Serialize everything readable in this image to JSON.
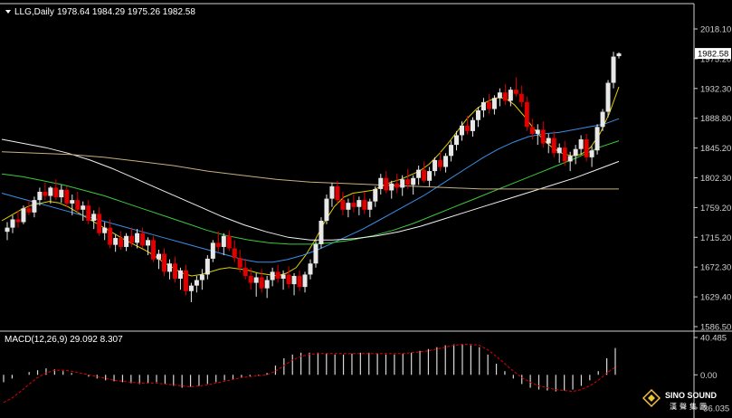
{
  "header": {
    "symbol_label": "LLG,Daily",
    "ohlc": "1978.64 1984.29 1975.26 1982.58"
  },
  "price_axis": {
    "ticks": [
      "2018.10",
      "1975.20",
      "1932.30",
      "1888.80",
      "1845.20",
      "1802.30",
      "1759.20",
      "1715.20",
      "1672.30",
      "1629.40",
      "1586.50"
    ],
    "current_price": "1982.58"
  },
  "macd_panel": {
    "label": "MACD(12,26,9) 29.092 8.307",
    "ticks": [
      "40.485",
      "0.00",
      "-36.035"
    ]
  },
  "watermark": {
    "brand": "SINO SOUND",
    "chinese": "漢聲集團"
  },
  "colors": {
    "background": "#000000",
    "up_candle": "#e8e8e8",
    "down_candle": "#e00000",
    "axis": "#d0d0d0",
    "ma_yellow": "#e0d000",
    "ma_blue": "#3a8fe8",
    "ma_green": "#3cc83c",
    "ma_white": "#f0f0f0",
    "ma_tan": "#c8b080",
    "macd_signal": "#e00000",
    "macd_hist": "#d8d8d8"
  },
  "chart_data": {
    "type": "candlestick",
    "ylim": [
      1586.5,
      2018.1
    ],
    "grid": false,
    "candles_ohlc": [
      [
        1724,
        1738,
        1712,
        1730
      ],
      [
        1730,
        1748,
        1722,
        1742
      ],
      [
        1742,
        1755,
        1730,
        1738
      ],
      [
        1738,
        1762,
        1735,
        1758
      ],
      [
        1758,
        1770,
        1748,
        1752
      ],
      [
        1752,
        1775,
        1745,
        1770
      ],
      [
        1770,
        1788,
        1762,
        1782
      ],
      [
        1782,
        1795,
        1770,
        1776
      ],
      [
        1776,
        1790,
        1765,
        1788
      ],
      [
        1788,
        1800,
        1770,
        1774
      ],
      [
        1774,
        1792,
        1766,
        1785
      ],
      [
        1785,
        1790,
        1760,
        1765
      ],
      [
        1765,
        1778,
        1748,
        1770
      ],
      [
        1770,
        1782,
        1752,
        1756
      ],
      [
        1756,
        1768,
        1740,
        1762
      ],
      [
        1762,
        1770,
        1735,
        1740
      ],
      [
        1740,
        1755,
        1728,
        1750
      ],
      [
        1750,
        1760,
        1718,
        1722
      ],
      [
        1722,
        1738,
        1712,
        1730
      ],
      [
        1730,
        1742,
        1700,
        1705
      ],
      [
        1705,
        1720,
        1695,
        1715
      ],
      [
        1715,
        1725,
        1698,
        1702
      ],
      [
        1702,
        1722,
        1696,
        1718
      ],
      [
        1718,
        1730,
        1702,
        1708
      ],
      [
        1708,
        1728,
        1700,
        1722
      ],
      [
        1722,
        1730,
        1700,
        1704
      ],
      [
        1704,
        1716,
        1690,
        1712
      ],
      [
        1712,
        1718,
        1680,
        1684
      ],
      [
        1684,
        1698,
        1670,
        1692
      ],
      [
        1692,
        1700,
        1660,
        1666
      ],
      [
        1666,
        1684,
        1655,
        1678
      ],
      [
        1678,
        1688,
        1650,
        1656
      ],
      [
        1656,
        1672,
        1640,
        1668
      ],
      [
        1668,
        1676,
        1632,
        1638
      ],
      [
        1638,
        1650,
        1622,
        1646
      ],
      [
        1646,
        1660,
        1636,
        1654
      ],
      [
        1654,
        1670,
        1640,
        1662
      ],
      [
        1662,
        1690,
        1655,
        1685
      ],
      [
        1685,
        1712,
        1680,
        1708
      ],
      [
        1708,
        1725,
        1695,
        1702
      ],
      [
        1702,
        1722,
        1690,
        1718
      ],
      [
        1718,
        1726,
        1696,
        1700
      ],
      [
        1700,
        1712,
        1680,
        1686
      ],
      [
        1686,
        1698,
        1665,
        1672
      ],
      [
        1672,
        1685,
        1655,
        1660
      ],
      [
        1660,
        1672,
        1640,
        1650
      ],
      [
        1650,
        1664,
        1630,
        1658
      ],
      [
        1658,
        1670,
        1636,
        1642
      ],
      [
        1642,
        1660,
        1628,
        1654
      ],
      [
        1654,
        1672,
        1645,
        1666
      ],
      [
        1666,
        1676,
        1650,
        1656
      ],
      [
        1656,
        1668,
        1640,
        1662
      ],
      [
        1662,
        1674,
        1642,
        1648
      ],
      [
        1648,
        1664,
        1632,
        1660
      ],
      [
        1660,
        1668,
        1638,
        1644
      ],
      [
        1644,
        1666,
        1636,
        1662
      ],
      [
        1662,
        1684,
        1655,
        1678
      ],
      [
        1678,
        1712,
        1672,
        1706
      ],
      [
        1706,
        1745,
        1700,
        1740
      ],
      [
        1740,
        1778,
        1735,
        1772
      ],
      [
        1772,
        1795,
        1760,
        1790
      ],
      [
        1790,
        1798,
        1765,
        1770
      ],
      [
        1770,
        1782,
        1748,
        1756
      ],
      [
        1756,
        1772,
        1745,
        1766
      ],
      [
        1766,
        1778,
        1752,
        1760
      ],
      [
        1760,
        1775,
        1748,
        1770
      ],
      [
        1770,
        1782,
        1750,
        1756
      ],
      [
        1756,
        1772,
        1745,
        1768
      ],
      [
        1768,
        1790,
        1760,
        1786
      ],
      [
        1786,
        1808,
        1778,
        1802
      ],
      [
        1802,
        1812,
        1780,
        1784
      ],
      [
        1784,
        1798,
        1772,
        1794
      ],
      [
        1794,
        1808,
        1780,
        1788
      ],
      [
        1788,
        1806,
        1776,
        1800
      ],
      [
        1800,
        1815,
        1786,
        1792
      ],
      [
        1792,
        1806,
        1778,
        1802
      ],
      [
        1802,
        1820,
        1792,
        1814
      ],
      [
        1814,
        1826,
        1795,
        1798
      ],
      [
        1798,
        1818,
        1790,
        1812
      ],
      [
        1812,
        1832,
        1805,
        1828
      ],
      [
        1828,
        1840,
        1812,
        1818
      ],
      [
        1818,
        1838,
        1810,
        1834
      ],
      [
        1834,
        1856,
        1826,
        1850
      ],
      [
        1850,
        1870,
        1842,
        1864
      ],
      [
        1864,
        1884,
        1856,
        1878
      ],
      [
        1878,
        1892,
        1865,
        1870
      ],
      [
        1870,
        1890,
        1862,
        1886
      ],
      [
        1886,
        1905,
        1876,
        1900
      ],
      [
        1900,
        1918,
        1890,
        1912
      ],
      [
        1912,
        1924,
        1895,
        1902
      ],
      [
        1902,
        1922,
        1894,
        1918
      ],
      [
        1918,
        1932,
        1906,
        1926
      ],
      [
        1926,
        1938,
        1908,
        1914
      ],
      [
        1914,
        1934,
        1906,
        1930
      ],
      [
        1930,
        1948,
        1920,
        1924
      ],
      [
        1924,
        1936,
        1905,
        1912
      ],
      [
        1912,
        1920,
        1870,
        1876
      ],
      [
        1876,
        1888,
        1858,
        1866
      ],
      [
        1866,
        1880,
        1850,
        1872
      ],
      [
        1872,
        1884,
        1846,
        1852
      ],
      [
        1852,
        1866,
        1838,
        1860
      ],
      [
        1860,
        1870,
        1832,
        1838
      ],
      [
        1838,
        1852,
        1824,
        1846
      ],
      [
        1846,
        1856,
        1820,
        1826
      ],
      [
        1826,
        1840,
        1812,
        1834
      ],
      [
        1834,
        1850,
        1822,
        1844
      ],
      [
        1844,
        1864,
        1836,
        1858
      ],
      [
        1858,
        1866,
        1826,
        1832
      ],
      [
        1832,
        1848,
        1818,
        1842
      ],
      [
        1842,
        1880,
        1836,
        1876
      ],
      [
        1876,
        1902,
        1870,
        1898
      ],
      [
        1898,
        1944,
        1890,
        1940
      ],
      [
        1940,
        1985,
        1932,
        1978
      ],
      [
        1978.64,
        1984.29,
        1975.26,
        1982.58
      ]
    ],
    "moving_averages": [
      {
        "color": "#e0d000",
        "values": [
          1740,
          1748,
          1756,
          1762,
          1765,
          1768,
          1766,
          1760,
          1752,
          1744,
          1736,
          1728,
          1720,
          1712,
          1705,
          1698,
          1690,
          1680,
          1672,
          1664,
          1660,
          1662,
          1666,
          1670,
          1672,
          1670,
          1668,
          1664,
          1662,
          1660,
          1664,
          1672,
          1690,
          1712,
          1738,
          1760,
          1774,
          1780,
          1782,
          1784,
          1790,
          1796,
          1800,
          1806,
          1812,
          1822,
          1836,
          1852,
          1870,
          1888,
          1902,
          1912,
          1918,
          1918,
          1908,
          1892,
          1874,
          1858,
          1846,
          1838,
          1834,
          1836,
          1846,
          1866,
          1896,
          1934
        ]
      },
      {
        "color": "#3a8fe8",
        "values": [
          1780,
          1774,
          1768,
          1762,
          1756,
          1750,
          1744,
          1738,
          1732,
          1726,
          1720,
          1714,
          1708,
          1702,
          1696,
          1690,
          1684,
          1680,
          1680,
          1684,
          1690,
          1698,
          1708,
          1718,
          1728,
          1740,
          1752,
          1764,
          1776,
          1790,
          1804,
          1818,
          1832,
          1844,
          1854,
          1862,
          1866,
          1868,
          1872,
          1876,
          1880,
          1888
        ]
      },
      {
        "color": "#3cc83c",
        "values": [
          1808,
          1804,
          1798,
          1792,
          1784,
          1776,
          1766,
          1756,
          1746,
          1736,
          1726,
          1718,
          1712,
          1708,
          1706,
          1706,
          1708,
          1712,
          1718,
          1726,
          1736,
          1748,
          1760,
          1772,
          1784,
          1796,
          1808,
          1820,
          1832,
          1846,
          1856
        ]
      },
      {
        "color": "#f0f0f0",
        "values": [
          1858,
          1852,
          1846,
          1838,
          1828,
          1816,
          1802,
          1788,
          1774,
          1760,
          1746,
          1734,
          1724,
          1716,
          1712,
          1712,
          1714,
          1718,
          1724,
          1732,
          1742,
          1752,
          1762,
          1772,
          1782,
          1792,
          1802,
          1814,
          1826
        ]
      },
      {
        "color": "#c8b080",
        "values": [
          1840,
          1838,
          1836,
          1832,
          1826,
          1820,
          1812,
          1806,
          1800,
          1796,
          1794,
          1792,
          1790,
          1788,
          1786,
          1786,
          1786,
          1786,
          1786
        ]
      }
    ],
    "macd": {
      "ylim": [
        -36.035,
        40.485
      ],
      "histogram": [
        -8,
        -4,
        0,
        3,
        5,
        7,
        6,
        4,
        2,
        0,
        -2,
        -4,
        -6,
        -7,
        -8,
        -9,
        -10,
        -9,
        -8,
        -10,
        -12,
        -14,
        -13,
        -12,
        -10,
        -8,
        -6,
        -5,
        -3,
        -2,
        -1,
        2,
        10,
        18,
        22,
        24,
        24,
        24,
        23,
        22,
        22,
        23,
        24,
        24,
        23,
        22,
        22,
        23,
        24,
        26,
        28,
        30,
        32,
        33,
        33,
        32,
        30,
        22,
        12,
        4,
        -4,
        -10,
        -14,
        -16,
        -17,
        -18,
        -17,
        -16,
        -12,
        -6,
        4,
        18,
        29.092
      ],
      "signal": [
        -30,
        -25,
        -18,
        -10,
        -3,
        2,
        5,
        5,
        4,
        2,
        0,
        -2,
        -4,
        -6,
        -7,
        -8,
        -9,
        -9,
        -9,
        -10,
        -11,
        -12,
        -13,
        -12,
        -11,
        -9,
        -7,
        -5,
        -3,
        -2,
        -1,
        0,
        4,
        10,
        16,
        20,
        22,
        23,
        23,
        23,
        23,
        23,
        23,
        23,
        23,
        23,
        23,
        23,
        24,
        25,
        26,
        28,
        30,
        32,
        33,
        33,
        32,
        27,
        20,
        12,
        4,
        -3,
        -8,
        -12,
        -14,
        -16,
        -17,
        -18,
        -16,
        -12,
        -6,
        2,
        8.307
      ]
    }
  }
}
